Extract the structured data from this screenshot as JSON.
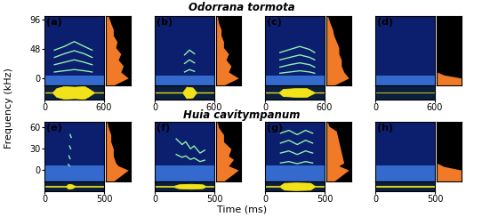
{
  "chart_data": {
    "type": "spectrogram",
    "xlabel": "Time (ms)",
    "ylabel": "Frequency (kHz)",
    "rows": [
      {
        "title": "Odorrana tormota",
        "xlim": [
          0,
          600
        ],
        "xticks": [
          0,
          600
        ],
        "ylim": [
          -12,
          102
        ],
        "yticks": [
          0,
          48,
          96
        ],
        "noise_band": [
          -12,
          4
        ],
        "spectrum_xlim": [
          0,
          1
        ],
        "waveform_ylim": [
          -1,
          1
        ],
        "panels": [
          {
            "label": "(a)",
            "traces": [
              {
                "x": [
                  100,
                  200,
                  300,
                  400,
                  480
                ],
                "y": [
                  10,
                  12,
                  14,
                  12,
                  10
                ]
              },
              {
                "x": [
                  100,
                  200,
                  300,
                  400,
                  480
                ],
                "y": [
                  22,
                  26,
                  30,
                  26,
                  22
                ]
              },
              {
                "x": [
                  100,
                  200,
                  300,
                  400,
                  480
                ],
                "y": [
                  34,
                  40,
                  45,
                  40,
                  34
                ]
              },
              {
                "x": [
                  100,
                  200,
                  300,
                  400,
                  480
                ],
                "y": [
                  46,
                  52,
                  60,
                  52,
                  46
                ]
              }
            ],
            "waveform": {
              "x": [
                0,
                80,
                120,
                200,
                300,
                400,
                450,
                500,
                600
              ],
              "amplitude": [
                0.03,
                0.03,
                0.6,
                0.9,
                0.8,
                0.9,
                0.5,
                0.03,
                0.03
              ]
            },
            "spectrum": {
              "frequency": [
                -12,
                0,
                10,
                20,
                30,
                40,
                50,
                60,
                70,
                80,
                90,
                102
              ],
              "power": [
                0.3,
                0.9,
                0.6,
                0.7,
                0.5,
                0.6,
                0.4,
                0.45,
                0.3,
                0.3,
                0.2,
                0.1
              ]
            }
          },
          {
            "label": "(b)",
            "traces": [
              {
                "x": [
                  300,
                  350,
                  400
                ],
                "y": [
                  10,
                  14,
                  11
                ]
              },
              {
                "x": [
                  300,
                  350,
                  400
                ],
                "y": [
                  24,
                  30,
                  25
                ]
              },
              {
                "x": [
                  300,
                  350,
                  400
                ],
                "y": [
                  38,
                  46,
                  40
                ]
              }
            ],
            "waveform": {
              "x": [
                0,
                280,
                320,
                380,
                420,
                600
              ],
              "amplitude": [
                0.03,
                0.03,
                0.8,
                0.7,
                0.03,
                0.03
              ]
            },
            "spectrum": {
              "frequency": [
                -12,
                0,
                10,
                20,
                30,
                40,
                50,
                60,
                70,
                80,
                90,
                102
              ],
              "power": [
                0.3,
                0.9,
                0.5,
                0.6,
                0.4,
                0.5,
                0.3,
                0.3,
                0.2,
                0.2,
                0.1,
                0.05
              ]
            }
          },
          {
            "label": "(c)",
            "traces": [
              {
                "x": [
                  150,
                  250,
                  350,
                  450,
                  500
                ],
                "y": [
                  8,
                  10,
                  12,
                  10,
                  8
                ]
              },
              {
                "x": [
                  150,
                  250,
                  350,
                  450,
                  500
                ],
                "y": [
                  18,
                  22,
                  25,
                  22,
                  18
                ]
              },
              {
                "x": [
                  150,
                  250,
                  350,
                  450,
                  500
                ],
                "y": [
                  30,
                  34,
                  38,
                  34,
                  30
                ]
              },
              {
                "x": [
                  150,
                  250,
                  350,
                  450,
                  500
                ],
                "y": [
                  42,
                  47,
                  52,
                  47,
                  42
                ]
              }
            ],
            "waveform": {
              "x": [
                0,
                140,
                180,
                300,
                420,
                500,
                600
              ],
              "amplitude": [
                0.03,
                0.03,
                0.5,
                0.6,
                0.6,
                0.03,
                0.03
              ]
            },
            "spectrum": {
              "frequency": [
                -12,
                0,
                10,
                20,
                30,
                40,
                50,
                60,
                70,
                80,
                90,
                102
              ],
              "power": [
                0.3,
                0.9,
                0.7,
                0.6,
                0.6,
                0.5,
                0.5,
                0.4,
                0.3,
                0.25,
                0.15,
                0.05
              ]
            }
          },
          {
            "label": "(d)",
            "traces": [],
            "waveform": {
              "x": [
                0,
                600
              ],
              "amplitude": [
                0.03,
                0.03
              ]
            },
            "spectrum": {
              "frequency": [
                -12,
                0,
                5,
                10,
                102
              ],
              "power": [
                1,
                1,
                0.3,
                0,
                0
              ]
            }
          }
        ]
      },
      {
        "title": "Huia cavitympanum",
        "xlim": [
          0,
          500
        ],
        "xticks": [
          0,
          500
        ],
        "ylim": [
          -16,
          68
        ],
        "yticks": [
          0,
          30,
          60
        ],
        "noise_band": [
          -16,
          6
        ],
        "spectrum_xlim": [
          0,
          1
        ],
        "waveform_ylim": [
          -1,
          1
        ],
        "panels": [
          {
            "label": "(e)",
            "traces": [
              {
                "x": [
                  200,
                  210
                ],
                "y": [
                  8,
                  6
                ]
              },
              {
                "x": [
                  205,
                  215
                ],
                "y": [
                  20,
                  16
                ]
              },
              {
                "x": [
                  210,
                  220
                ],
                "y": [
                  34,
                  30
                ]
              },
              {
                "x": [
                  215,
                  225
                ],
                "y": [
                  50,
                  46
                ]
              }
            ],
            "waveform": {
              "x": [
                0,
                180,
                200,
                230,
                260,
                500
              ],
              "amplitude": [
                0.03,
                0.03,
                0.5,
                0.4,
                0.03,
                0.03
              ]
            },
            "spectrum": {
              "frequency": [
                -16,
                0,
                6,
                10,
                20,
                30,
                40,
                50,
                60,
                68
              ],
              "power": [
                0.3,
                0.9,
                0.5,
                0.4,
                0.3,
                0.3,
                0.2,
                0.2,
                0.1,
                0.05
              ]
            }
          },
          {
            "label": "(f)",
            "traces": [
              {
                "x": [
                  180,
                  230,
                  260,
                  300,
                  330,
                  380,
                  420
                ],
                "y": [
                  22,
                  18,
                  20,
                  15,
                  17,
                  12,
                  14
                ]
              },
              {
                "x": [
                  180,
                  230,
                  260,
                  300,
                  330,
                  380,
                  420
                ],
                "y": [
                  44,
                  36,
                  40,
                  30,
                  34,
                  24,
                  28
                ]
              }
            ],
            "waveform": {
              "x": [
                0,
                150,
                200,
                300,
                400,
                430,
                500
              ],
              "amplitude": [
                0.03,
                0.03,
                0.4,
                0.5,
                0.4,
                0.03,
                0.03
              ]
            },
            "spectrum": {
              "frequency": [
                -16,
                0,
                6,
                15,
                20,
                30,
                40,
                50,
                60,
                68
              ],
              "power": [
                0.3,
                0.9,
                0.5,
                0.7,
                0.5,
                0.6,
                0.3,
                0.3,
                0.1,
                0.05
              ]
            }
          },
          {
            "label": "(g)",
            "traces": [
              {
                "x": [
                  130,
                  200,
                  270,
                  340,
                  400
                ],
                "y": [
                  10,
                  12,
                  9,
                  12,
                  10
                ]
              },
              {
                "x": [
                  130,
                  200,
                  270,
                  340,
                  400
                ],
                "y": [
                  24,
                  27,
                  22,
                  27,
                  24
                ]
              },
              {
                "x": [
                  130,
                  200,
                  270,
                  340,
                  400
                ],
                "y": [
                  38,
                  42,
                  36,
                  42,
                  38
                ]
              },
              {
                "x": [
                  130,
                  200,
                  270,
                  340,
                  400
                ],
                "y": [
                  52,
                  56,
                  50,
                  56,
                  52
                ]
              }
            ],
            "waveform": {
              "x": [
                0,
                120,
                160,
                260,
                380,
                420,
                500
              ],
              "amplitude": [
                0.03,
                0.03,
                0.7,
                0.8,
                0.7,
                0.03,
                0.03
              ]
            },
            "spectrum": {
              "frequency": [
                -16,
                0,
                6,
                10,
                25,
                40,
                55,
                62,
                68
              ],
              "power": [
                0.3,
                0.9,
                0.5,
                0.7,
                0.6,
                0.5,
                0.4,
                0.1,
                0.05
              ]
            }
          },
          {
            "label": "(h)",
            "traces": [],
            "waveform": {
              "x": [
                0,
                500
              ],
              "amplitude": [
                0.03,
                0.03
              ]
            },
            "spectrum": {
              "frequency": [
                -16,
                0,
                5,
                10,
                68
              ],
              "power": [
                1,
                1,
                0.3,
                0,
                0
              ]
            }
          }
        ]
      }
    ]
  }
}
